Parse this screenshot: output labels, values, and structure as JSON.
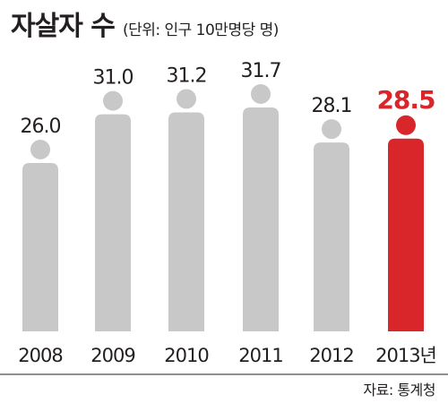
{
  "title": "자살자 수",
  "unit_note": "(단위: 인구 10만명당 명)",
  "source": "자료: 통계청",
  "colors": {
    "default": "#c8c8c8",
    "highlight": "#d8262b",
    "text": "#231f20",
    "baseline": "#231f20"
  },
  "chart_data": {
    "type": "bar",
    "title": "자살자 수",
    "subtitle": "(단위: 인구 10만명당 명)",
    "categories": [
      "2008",
      "2009",
      "2010",
      "2011",
      "2012",
      "2013년"
    ],
    "values": [
      26.0,
      31.0,
      31.2,
      31.7,
      28.1,
      28.5
    ],
    "value_labels": [
      "26.0",
      "31.0",
      "31.2",
      "31.7",
      "28.1",
      "28.5"
    ],
    "highlight_index": 5,
    "ylim": [
      0,
      31.7
    ],
    "grid": false,
    "legend": "none"
  }
}
